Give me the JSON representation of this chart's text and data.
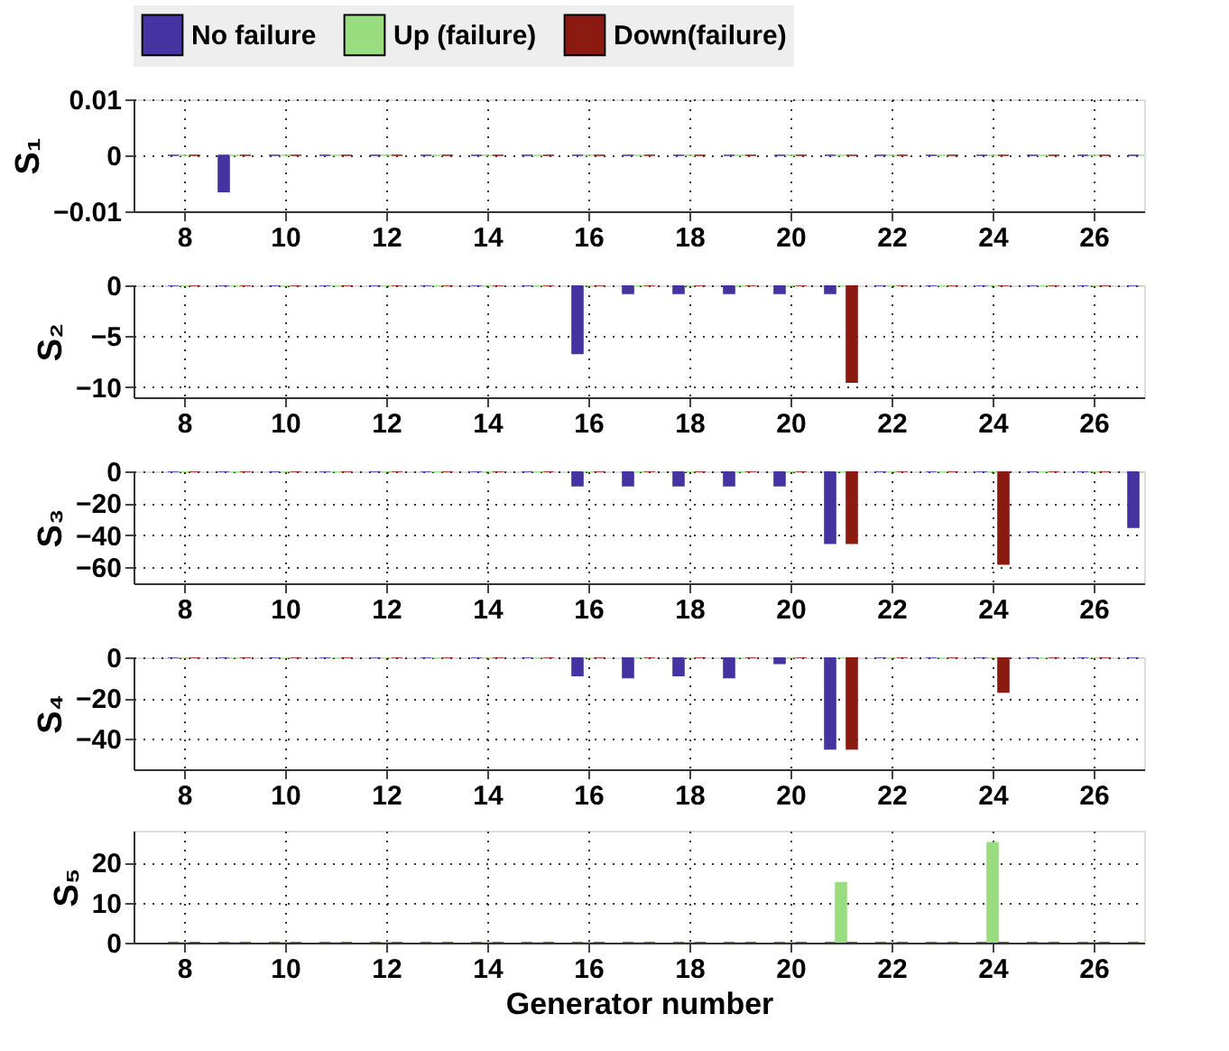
{
  "chart_data": [
    {
      "type": "bar",
      "ylabel": "S₁",
      "x": [
        8,
        9,
        10,
        11,
        12,
        13,
        14,
        15,
        16,
        17,
        18,
        19,
        20,
        21,
        22,
        23,
        24,
        25,
        26,
        27
      ],
      "xlim": [
        7,
        27
      ],
      "xticks": [
        8,
        10,
        12,
        14,
        16,
        18,
        20,
        22,
        24,
        26
      ],
      "ylim": [
        -0.01,
        0.01
      ],
      "yticks": [
        -0.01,
        0,
        0.01
      ],
      "grid": true,
      "legend": "top",
      "series": [
        {
          "name": "No failure",
          "color": "#4433a0",
          "values": [
            0,
            -0.0065,
            0,
            0,
            0,
            0,
            0,
            0,
            0,
            0,
            0,
            0,
            0,
            0,
            0,
            0,
            0,
            0,
            0,
            0
          ]
        },
        {
          "name": "Up (failure)",
          "color": "#99dd80",
          "values": [
            0,
            0,
            0,
            0,
            0,
            0,
            0,
            0,
            0,
            0,
            0,
            0,
            0,
            0,
            0,
            0,
            0,
            0,
            0,
            0
          ]
        },
        {
          "name": "Down(failure)",
          "color": "#8b1a10",
          "values": [
            0,
            0,
            0,
            0,
            0,
            0,
            0,
            0,
            0,
            0,
            0,
            0,
            0,
            0,
            0,
            0,
            0,
            0,
            0,
            0
          ]
        }
      ]
    },
    {
      "type": "bar",
      "ylabel": "S₂",
      "x": [
        8,
        9,
        10,
        11,
        12,
        13,
        14,
        15,
        16,
        17,
        18,
        19,
        20,
        21,
        22,
        23,
        24,
        25,
        26,
        27
      ],
      "xlim": [
        7,
        27
      ],
      "xticks": [
        8,
        10,
        12,
        14,
        16,
        18,
        20,
        22,
        24,
        26
      ],
      "ylim": [
        -11,
        0
      ],
      "yticks": [
        -10,
        -5,
        0
      ],
      "grid": true,
      "series": [
        {
          "color": "#4433a0",
          "values": [
            0,
            0,
            0,
            0,
            0,
            0,
            0,
            0,
            -6.7,
            -0.8,
            -0.8,
            -0.8,
            -0.8,
            -0.8,
            0,
            0,
            0,
            0,
            0,
            0
          ]
        },
        {
          "color": "#99dd80",
          "values": [
            0,
            0,
            0,
            0,
            0,
            0,
            0,
            0,
            0,
            0,
            0,
            0,
            0,
            0,
            0,
            0,
            0,
            0,
            0,
            0
          ]
        },
        {
          "color": "#8b1a10",
          "values": [
            0,
            0,
            0,
            0,
            0,
            0,
            0,
            0,
            0,
            0,
            0,
            0,
            0,
            -9.5,
            0,
            0,
            0,
            0,
            0,
            0
          ]
        }
      ]
    },
    {
      "type": "bar",
      "ylabel": "S₃",
      "x": [
        8,
        9,
        10,
        11,
        12,
        13,
        14,
        15,
        16,
        17,
        18,
        19,
        20,
        21,
        22,
        23,
        24,
        25,
        26,
        27
      ],
      "xlim": [
        7,
        27
      ],
      "xticks": [
        8,
        10,
        12,
        14,
        16,
        18,
        20,
        22,
        24,
        26
      ],
      "ylim": [
        -70,
        0
      ],
      "yticks": [
        -60,
        -40,
        -20,
        0
      ],
      "grid": true,
      "series": [
        {
          "color": "#4433a0",
          "values": [
            0,
            0,
            0,
            0,
            0,
            0,
            0,
            0,
            -9,
            -9,
            -9,
            -9,
            -9,
            -45,
            0,
            0,
            0,
            0,
            0,
            -35
          ]
        },
        {
          "color": "#99dd80",
          "values": [
            0,
            0,
            0,
            0,
            0,
            0,
            0,
            0,
            0,
            0,
            0,
            0,
            0,
            0,
            0,
            0,
            0,
            0,
            0,
            0
          ]
        },
        {
          "color": "#8b1a10",
          "values": [
            0,
            0,
            0,
            0,
            0,
            0,
            0,
            0,
            0,
            0,
            0,
            0,
            0,
            -45,
            0,
            0,
            -58,
            0,
            0,
            0
          ]
        }
      ]
    },
    {
      "type": "bar",
      "ylabel": "S₄",
      "x": [
        8,
        9,
        10,
        11,
        12,
        13,
        14,
        15,
        16,
        17,
        18,
        19,
        20,
        21,
        22,
        23,
        24,
        25,
        26,
        27
      ],
      "xlim": [
        7,
        27
      ],
      "xticks": [
        8,
        10,
        12,
        14,
        16,
        18,
        20,
        22,
        24,
        26
      ],
      "ylim": [
        -55,
        0
      ],
      "yticks": [
        -40,
        -20,
        0
      ],
      "grid": true,
      "series": [
        {
          "color": "#4433a0",
          "values": [
            0,
            0,
            0,
            0,
            0,
            0,
            0,
            0,
            -9,
            -10,
            -9,
            -10,
            -3,
            -45,
            0,
            0,
            0,
            0,
            0,
            0
          ]
        },
        {
          "color": "#99dd80",
          "values": [
            0,
            0,
            0,
            0,
            0,
            0,
            0,
            0,
            0,
            0,
            0,
            0,
            0,
            0,
            0,
            0,
            0,
            0,
            0,
            0
          ]
        },
        {
          "color": "#8b1a10",
          "values": [
            0,
            0,
            0,
            0,
            0,
            0,
            0,
            0,
            0,
            0,
            0,
            0,
            0,
            -45,
            0,
            0,
            -17,
            0,
            0,
            0
          ]
        }
      ]
    },
    {
      "type": "bar",
      "ylabel": "S₅",
      "xlabel": "Generator number",
      "x": [
        8,
        9,
        10,
        11,
        12,
        13,
        14,
        15,
        16,
        17,
        18,
        19,
        20,
        21,
        22,
        23,
        24,
        25,
        26,
        27
      ],
      "xlim": [
        7,
        27
      ],
      "xticks": [
        8,
        10,
        12,
        14,
        16,
        18,
        20,
        22,
        24,
        26
      ],
      "ylim": [
        0,
        28
      ],
      "yticks": [
        0,
        10,
        20
      ],
      "grid": true,
      "series": [
        {
          "color": "#4433a0",
          "values": [
            0,
            0,
            0,
            0,
            0,
            0,
            0,
            0,
            0,
            0,
            0,
            0,
            0,
            0,
            0,
            0,
            0,
            0,
            0,
            0
          ]
        },
        {
          "color": "#99dd80",
          "values": [
            0,
            0,
            0,
            0,
            0,
            0,
            0,
            0,
            0,
            0,
            0,
            0,
            0,
            15,
            0,
            0,
            25,
            0,
            0,
            0
          ]
        },
        {
          "color": "#8b1a10",
          "values": [
            0,
            0,
            0,
            0,
            0,
            0,
            0,
            0,
            0,
            0,
            0,
            0,
            0,
            0,
            0,
            0,
            0,
            0,
            0,
            0
          ]
        }
      ]
    }
  ]
}
